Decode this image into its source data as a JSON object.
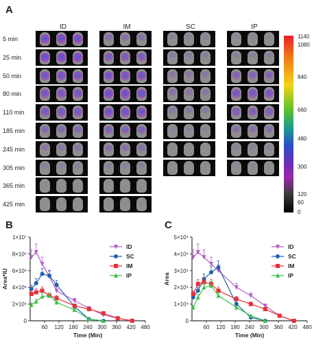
{
  "panel_a": {
    "letter": "A",
    "groups": [
      "ID",
      "IM",
      "SC",
      "IP"
    ],
    "timepoints": [
      "5 min",
      "25 min",
      "50 min",
      "80 min",
      "110 min",
      "185 min",
      "245 min",
      "305 min",
      "365 min",
      "425 min"
    ],
    "colorbar_ticks": [
      "1140",
      "1080",
      "840",
      "660",
      "480",
      "300",
      "120",
      "60",
      "0"
    ]
  },
  "chart_data": [
    {
      "letter": "B",
      "type": "line",
      "xlabel": "Time (Min)",
      "ylabel": "Area*IU",
      "xlim": [
        0,
        480
      ],
      "xticks": [
        "60",
        "120",
        "180",
        "240",
        "300",
        "360",
        "420",
        "480"
      ],
      "ylim": [
        0,
        10000000
      ],
      "yticks": [
        "0",
        "2×10⁶",
        "4×10⁶",
        "6×10⁶",
        "8×10⁶",
        "1×10⁷"
      ],
      "legend_position": "top-right",
      "series": [
        {
          "name": "ID",
          "color": "#b45cc8",
          "marker": "triangle-down",
          "x": [
            5,
            25,
            50,
            80,
            110,
            185,
            245,
            305,
            365,
            425
          ],
          "y": [
            7600000,
            8200000,
            6800000,
            5300000,
            3600000,
            2400000,
            1500000,
            700000,
            300000,
            0
          ]
        },
        {
          "name": "SC",
          "color": "#1f5fb4",
          "marker": "circle",
          "x": [
            5,
            25,
            50,
            80,
            110,
            185,
            245,
            305
          ],
          "y": [
            3800000,
            4500000,
            5600000,
            5400000,
            4300000,
            1700000,
            200000,
            0
          ]
        },
        {
          "name": "IM",
          "color": "#e8303a",
          "marker": "square",
          "x": [
            5,
            25,
            50,
            80,
            110,
            185,
            245,
            305,
            365,
            425
          ],
          "y": [
            3200000,
            3400000,
            3600000,
            3000000,
            2700000,
            1800000,
            1400000,
            900000,
            300000,
            0
          ]
        },
        {
          "name": "IP",
          "color": "#3cc24a",
          "marker": "triangle-up",
          "x": [
            5,
            25,
            50,
            80,
            110,
            185,
            245,
            305
          ],
          "y": [
            1900000,
            2300000,
            2900000,
            3000000,
            2200000,
            1300000,
            200000,
            0
          ]
        }
      ]
    },
    {
      "letter": "C",
      "type": "line",
      "xlabel": "Time (Min)",
      "ylabel": "Area",
      "xlim": [
        0,
        480
      ],
      "xticks": [
        "60",
        "120",
        "180",
        "240",
        "300",
        "360",
        "420",
        "480"
      ],
      "ylim": [
        0,
        50000
      ],
      "yticks": [
        "0",
        "1×10⁴",
        "2×10⁴",
        "3×10⁴",
        "4×10⁴",
        "5×10⁴"
      ],
      "legend_position": "top-right",
      "series": [
        {
          "name": "ID",
          "color": "#b45cc8",
          "marker": "triangle-down",
          "x": [
            5,
            25,
            50,
            80,
            110,
            185,
            245,
            305,
            365,
            425
          ],
          "y": [
            38000,
            41000,
            38000,
            34000,
            30000,
            20000,
            15000,
            9000,
            3000,
            0
          ]
        },
        {
          "name": "SC",
          "color": "#1f5fb4",
          "marker": "circle",
          "x": [
            5,
            25,
            50,
            80,
            110,
            185,
            245,
            305
          ],
          "y": [
            14000,
            18000,
            25000,
            29000,
            32000,
            10000,
            2000,
            0
          ]
        },
        {
          "name": "IM",
          "color": "#e8303a",
          "marker": "square",
          "x": [
            5,
            25,
            50,
            80,
            110,
            185,
            245,
            305,
            365,
            425
          ],
          "y": [
            16000,
            22000,
            23000,
            22000,
            18000,
            13000,
            10000,
            7000,
            3000,
            0
          ]
        },
        {
          "name": "IP",
          "color": "#3cc24a",
          "marker": "triangle-up",
          "x": [
            5,
            25,
            50,
            80,
            110,
            185,
            245,
            305
          ],
          "y": [
            8000,
            14000,
            20000,
            21000,
            15000,
            8000,
            3000,
            0
          ]
        }
      ]
    }
  ]
}
